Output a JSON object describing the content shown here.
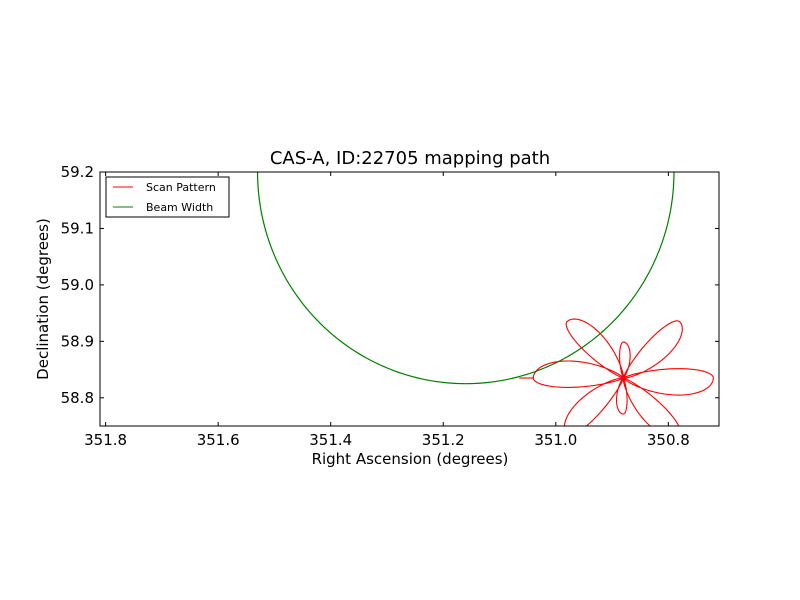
{
  "chart_data": {
    "type": "line",
    "title": "CAS-A, ID:22705 mapping path",
    "xlabel": "Right Ascension (degrees)",
    "ylabel": "Declination (degrees)",
    "xlim": [
      351.81,
      350.71
    ],
    "ylim": [
      58.75,
      59.2
    ],
    "x_inverted": true,
    "xticks": [
      351.8,
      351.6,
      351.4,
      351.2,
      351.0,
      350.8
    ],
    "xtick_labels": [
      "351.8",
      "351.6",
      "351.4",
      "351.2",
      "351.0",
      "350.8"
    ],
    "yticks": [
      58.8,
      58.9,
      59.0,
      59.1,
      59.2
    ],
    "ytick_labels": [
      "58.8",
      "58.9",
      "59.0",
      "59.1",
      "59.2"
    ],
    "grid": false,
    "legend_position": "upper-left",
    "series": [
      {
        "name": "Scan Pattern",
        "color": "#ff0000",
        "shape": "rose",
        "center": [
          350.88,
          58.835
        ],
        "petals": 8,
        "petal_angles_deg": [
          0,
          45,
          90,
          135,
          180,
          225,
          270,
          315
        ],
        "petal_lengths": [
          0.16,
          0.16,
          0.085,
          0.16,
          0.16,
          0.16,
          0.085,
          0.16
        ],
        "petal_aspect": 0.225
      },
      {
        "name": "Beam Width",
        "color": "#008000",
        "shape": "circle",
        "center": [
          351.16,
          59.2
        ],
        "radius_ra": 0.37,
        "radius_dec": 0.375
      }
    ]
  }
}
